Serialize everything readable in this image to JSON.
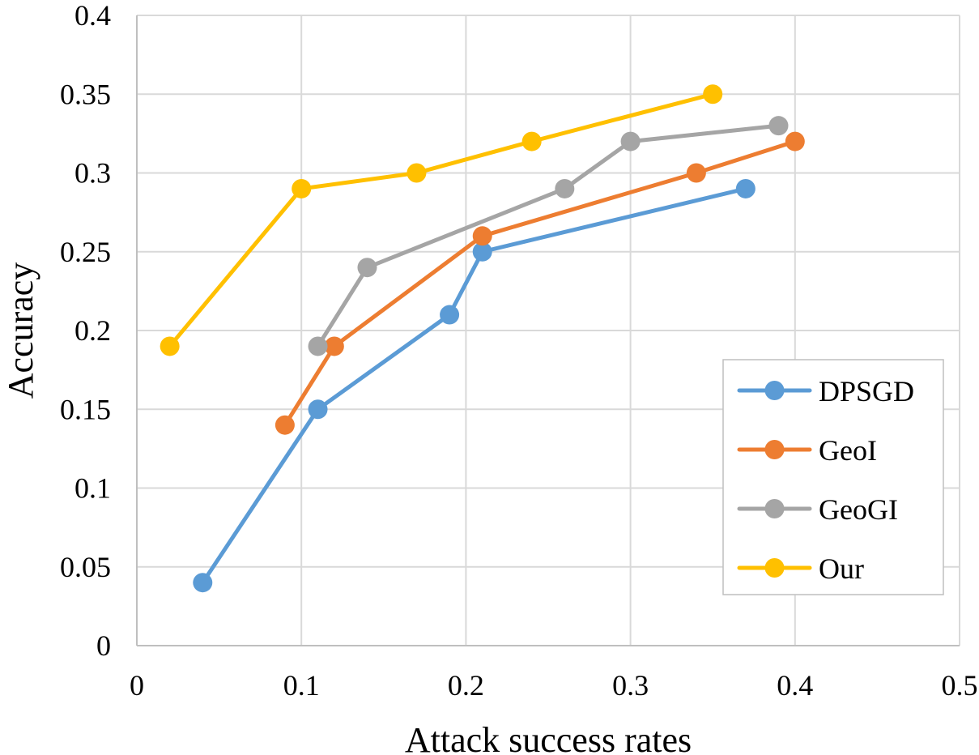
{
  "chart_data": {
    "type": "line",
    "title": "",
    "xlabel": "Attack success rates",
    "ylabel": "Accuracy",
    "xlim": [
      0,
      0.5
    ],
    "ylim": [
      0,
      0.4
    ],
    "x_ticks": [
      "0",
      "0.1",
      "0.2",
      "0.3",
      "0.4",
      "0.5"
    ],
    "x_tick_values": [
      0,
      0.1,
      0.2,
      0.3,
      0.4,
      0.5
    ],
    "y_ticks": [
      "0",
      "0.05",
      "0.1",
      "0.15",
      "0.2",
      "0.25",
      "0.3",
      "0.35",
      "0.4"
    ],
    "y_tick_values": [
      0,
      0.05,
      0.1,
      0.15,
      0.2,
      0.25,
      0.3,
      0.35,
      0.4
    ],
    "grid": true,
    "legend_position": "bottom-right",
    "series": [
      {
        "name": "DPSGD",
        "color": "#5b9bd5",
        "x": [
          0.04,
          0.11,
          0.19,
          0.21,
          0.37
        ],
        "y": [
          0.04,
          0.15,
          0.21,
          0.25,
          0.29
        ]
      },
      {
        "name": "GeoI",
        "color": "#ed7d31",
        "x": [
          0.09,
          0.12,
          0.21,
          0.34,
          0.4
        ],
        "y": [
          0.14,
          0.19,
          0.26,
          0.3,
          0.32
        ]
      },
      {
        "name": "GeoGI",
        "color": "#a5a5a5",
        "x": [
          0.11,
          0.14,
          0.26,
          0.3,
          0.39
        ],
        "y": [
          0.19,
          0.24,
          0.29,
          0.32,
          0.33
        ]
      },
      {
        "name": "Our",
        "color": "#ffc000",
        "x": [
          0.02,
          0.1,
          0.17,
          0.24,
          0.35
        ],
        "y": [
          0.19,
          0.29,
          0.3,
          0.32,
          0.35
        ]
      }
    ]
  }
}
